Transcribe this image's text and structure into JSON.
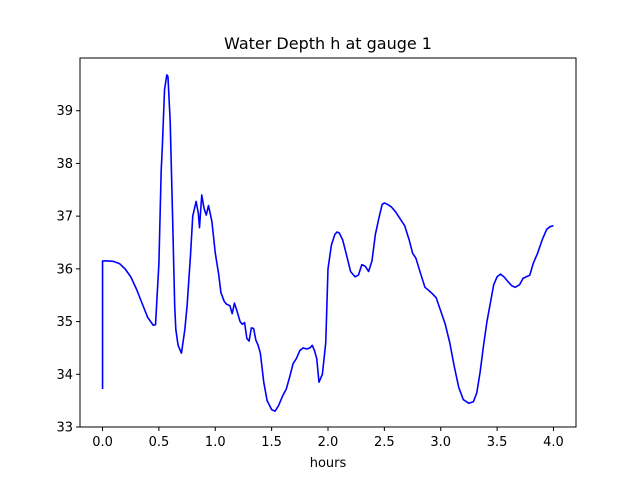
{
  "chart_data": {
    "type": "line",
    "title": "Water Depth h at gauge 1",
    "xlabel": "hours",
    "ylabel": "",
    "xlim": [
      -0.2,
      4.2
    ],
    "ylim": [
      33.0,
      40.0
    ],
    "xticks": [
      0.0,
      0.5,
      1.0,
      1.5,
      2.0,
      2.5,
      3.0,
      3.5,
      4.0
    ],
    "xtick_labels": [
      "0.0",
      "0.5",
      "1.0",
      "1.5",
      "2.0",
      "2.5",
      "3.0",
      "3.5",
      "4.0"
    ],
    "yticks": [
      33,
      34,
      35,
      36,
      37,
      38,
      39
    ],
    "ytick_labels": [
      "33",
      "34",
      "35",
      "36",
      "37",
      "38",
      "39"
    ],
    "grid": false,
    "series": [
      {
        "color": "#0000ff",
        "x": [
          0.0,
          0.0,
          0.05,
          0.1,
          0.15,
          0.2,
          0.25,
          0.3,
          0.35,
          0.4,
          0.45,
          0.47,
          0.5,
          0.52,
          0.53,
          0.55,
          0.57,
          0.58,
          0.6,
          0.62,
          0.64,
          0.65,
          0.67,
          0.7,
          0.73,
          0.75,
          0.78,
          0.8,
          0.83,
          0.85,
          0.86,
          0.88,
          0.9,
          0.92,
          0.94,
          0.97,
          1.0,
          1.03,
          1.05,
          1.08,
          1.1,
          1.13,
          1.15,
          1.17,
          1.19,
          1.22,
          1.24,
          1.26,
          1.28,
          1.3,
          1.32,
          1.34,
          1.36,
          1.38,
          1.4,
          1.43,
          1.46,
          1.5,
          1.53,
          1.56,
          1.6,
          1.63,
          1.66,
          1.69,
          1.72,
          1.75,
          1.78,
          1.81,
          1.84,
          1.86,
          1.88,
          1.9,
          1.92,
          1.95,
          1.98,
          2.0,
          2.03,
          2.06,
          2.08,
          2.1,
          2.13,
          2.16,
          2.2,
          2.24,
          2.27,
          2.3,
          2.33,
          2.36,
          2.39,
          2.42,
          2.45,
          2.48,
          2.5,
          2.53,
          2.56,
          2.6,
          2.64,
          2.68,
          2.72,
          2.75,
          2.78,
          2.82,
          2.86,
          2.9,
          2.93,
          2.96,
          3.0,
          3.04,
          3.08,
          3.12,
          3.16,
          3.2,
          3.25,
          3.29,
          3.32,
          3.35,
          3.38,
          3.41,
          3.44,
          3.47,
          3.5,
          3.53,
          3.56,
          3.6,
          3.63,
          3.66,
          3.7,
          3.73,
          3.76,
          3.79,
          3.82,
          3.86,
          3.9,
          3.94,
          3.97,
          4.0
        ],
        "values": [
          33.72,
          36.15,
          36.15,
          36.14,
          36.1,
          36.0,
          35.85,
          35.62,
          35.35,
          35.08,
          34.93,
          34.94,
          36.1,
          37.85,
          38.3,
          39.4,
          39.68,
          39.65,
          38.8,
          37.1,
          35.3,
          34.85,
          34.55,
          34.4,
          34.85,
          35.3,
          36.25,
          37.0,
          37.28,
          37.05,
          36.78,
          37.4,
          37.15,
          37.02,
          37.2,
          36.9,
          36.3,
          35.9,
          35.55,
          35.38,
          35.33,
          35.3,
          35.15,
          35.35,
          35.22,
          35.0,
          34.95,
          34.98,
          34.68,
          34.63,
          34.88,
          34.87,
          34.65,
          34.55,
          34.4,
          33.85,
          33.5,
          33.33,
          33.3,
          33.4,
          33.6,
          33.72,
          33.95,
          34.2,
          34.3,
          34.45,
          34.5,
          34.48,
          34.5,
          34.55,
          34.45,
          34.3,
          33.85,
          34.0,
          34.6,
          36.0,
          36.45,
          36.65,
          36.7,
          36.68,
          36.55,
          36.3,
          35.95,
          35.85,
          35.88,
          36.08,
          36.05,
          35.95,
          36.15,
          36.65,
          36.95,
          37.22,
          37.25,
          37.22,
          37.18,
          37.08,
          36.95,
          36.82,
          36.55,
          36.3,
          36.2,
          35.92,
          35.65,
          35.58,
          35.52,
          35.45,
          35.2,
          34.95,
          34.6,
          34.15,
          33.75,
          33.52,
          33.45,
          33.48,
          33.65,
          34.05,
          34.55,
          35.0,
          35.35,
          35.7,
          35.85,
          35.9,
          35.85,
          35.75,
          35.68,
          35.65,
          35.7,
          35.82,
          35.85,
          35.88,
          36.1,
          36.3,
          36.55,
          36.75,
          36.8,
          36.82
        ]
      }
    ]
  }
}
